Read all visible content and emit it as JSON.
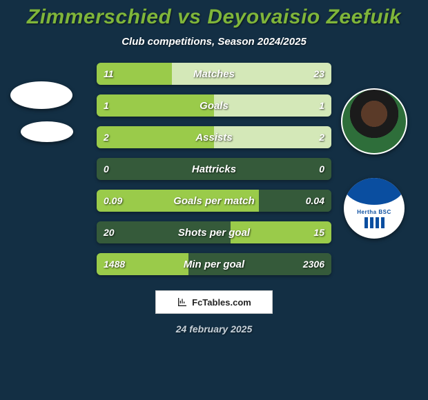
{
  "colors": {
    "background": "#132f44",
    "title": "#7fb53a",
    "subtitle": "#ffffff",
    "bar_base": "#355a3a",
    "bar_accent": "#9acb4a",
    "bar_pale": "#d4e8b8",
    "text_white": "#ffffff",
    "footer_date": "#c8d2da"
  },
  "title": "Zimmerschied vs Deyovaisio Zeefuik",
  "subtitle": "Club competitions, Season 2024/2025",
  "footer": {
    "brand": "FcTables.com",
    "date": "24 february 2025"
  },
  "logo_team": "Hertha BSC",
  "comparison": {
    "rows": [
      {
        "label": "Matches",
        "left": "11",
        "right": "23",
        "left_pct": 32,
        "right_pct": 68,
        "fill": "split"
      },
      {
        "label": "Goals",
        "left": "1",
        "right": "1",
        "left_pct": 50,
        "right_pct": 50,
        "fill": "split"
      },
      {
        "label": "Assists",
        "left": "2",
        "right": "2",
        "left_pct": 50,
        "right_pct": 50,
        "fill": "split"
      },
      {
        "label": "Hattricks",
        "left": "0",
        "right": "0",
        "left_pct": 0,
        "right_pct": 0,
        "fill": "none"
      },
      {
        "label": "Goals per match",
        "left": "0.09",
        "right": "0.04",
        "left_pct": 69,
        "right_pct": 31,
        "fill": "left_better"
      },
      {
        "label": "Shots per goal",
        "left": "20",
        "right": "15",
        "left_pct": 57,
        "right_pct": 43,
        "fill": "right_better"
      },
      {
        "label": "Min per goal",
        "left": "1488",
        "right": "2306",
        "left_pct": 39,
        "right_pct": 61,
        "fill": "left_better"
      }
    ]
  }
}
